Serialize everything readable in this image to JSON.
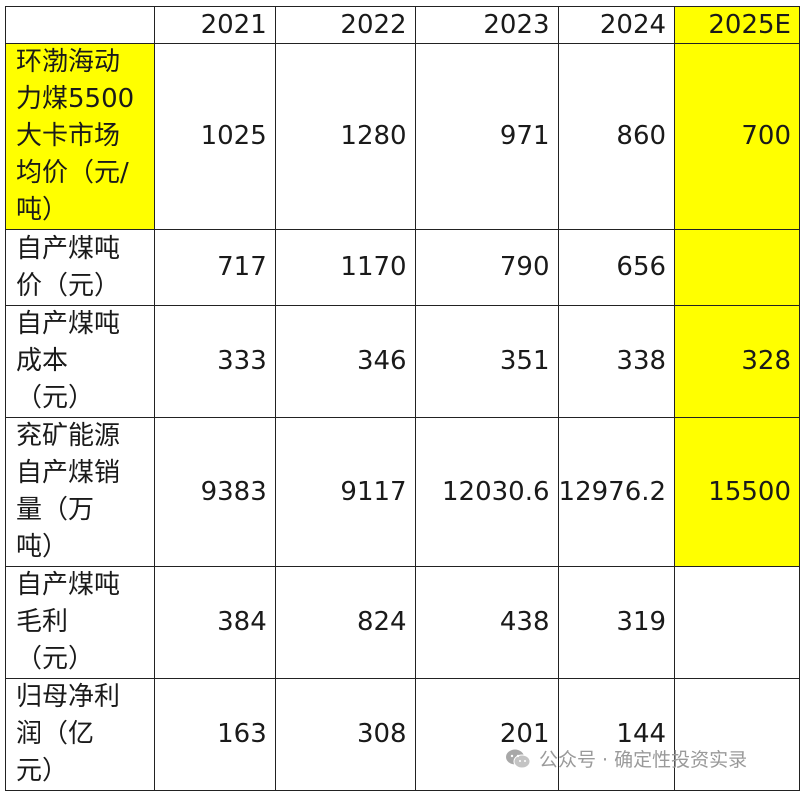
{
  "header": {
    "corner": "",
    "years": [
      "2021",
      "2022",
      "2023",
      "2024",
      "2025E"
    ]
  },
  "rows": [
    {
      "label_lines": [
        "环渤海动",
        "力煤5500",
        "大卡市场",
        "均价（元/",
        "吨）"
      ],
      "values": [
        "1025",
        "1280",
        "971",
        "860",
        "700"
      ]
    },
    {
      "label_lines": [
        "自产煤吨",
        "价（元）"
      ],
      "values": [
        "717",
        "1170",
        "790",
        "656",
        ""
      ]
    },
    {
      "label_lines": [
        "自产煤吨",
        "成本",
        "（元）"
      ],
      "values": [
        "333",
        "346",
        "351",
        "338",
        "328"
      ]
    },
    {
      "label_lines": [
        "兖矿能源",
        "自产煤销",
        "量（万",
        "吨）"
      ],
      "values": [
        "9383",
        "9117",
        "12030.6",
        "12976.2",
        "15500"
      ]
    },
    {
      "label_lines": [
        "自产煤吨",
        "毛利",
        "（元）"
      ],
      "values": [
        "384",
        "824",
        "438",
        "319",
        ""
      ]
    },
    {
      "label_lines": [
        "归母净利",
        "润（亿",
        "元）"
      ],
      "values": [
        "163",
        "308",
        "201",
        "144",
        ""
      ]
    }
  ],
  "highlight_color": "#ffff00",
  "watermark": {
    "icon": "wechat-icon",
    "text": "公众号 · 确定性投资实录"
  }
}
